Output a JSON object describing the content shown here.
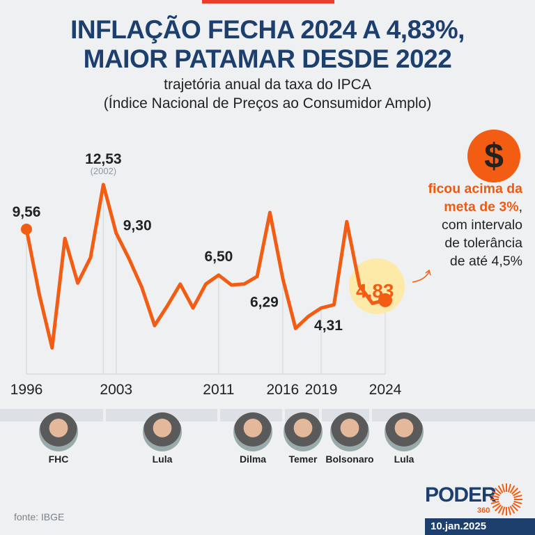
{
  "header": {
    "title_line1": "INFLAÇÃO FECHA 2024 A 4,83%,",
    "title_line2": "MAIOR PATAMAR DESDE 2022",
    "subtitle_line1": "trajetória anual da taxa do IPCA",
    "subtitle_line2": "(Índice Nacional de Preços ao Consumidor Amplo)"
  },
  "chart_data": {
    "type": "line",
    "x": [
      1996,
      1997,
      1998,
      1999,
      2000,
      2001,
      2002,
      2003,
      2004,
      2005,
      2006,
      2007,
      2008,
      2009,
      2010,
      2011,
      2012,
      2013,
      2014,
      2015,
      2016,
      2017,
      2018,
      2019,
      2020,
      2021,
      2022,
      2023,
      2024
    ],
    "values": [
      9.56,
      5.22,
      1.65,
      8.94,
      5.97,
      7.67,
      12.53,
      9.3,
      7.6,
      5.69,
      3.14,
      4.46,
      5.9,
      4.31,
      5.91,
      6.5,
      5.84,
      5.91,
      6.41,
      10.67,
      6.29,
      2.95,
      3.75,
      4.31,
      4.52,
      10.06,
      5.79,
      4.62,
      4.83
    ],
    "xticks": [
      "1996",
      "2003",
      "2011",
      "2016",
      "2019",
      "2024"
    ],
    "ylim": [
      0,
      13
    ],
    "line_color": "#f25c13",
    "annotations": [
      {
        "year": 1996,
        "label": "9,56"
      },
      {
        "year": 2002,
        "label": "12,53",
        "sublabel": "(2002)"
      },
      {
        "year": 2003,
        "label": "9,30"
      },
      {
        "year": 2011,
        "label": "6,50"
      },
      {
        "year": 2016,
        "label": "6,29"
      },
      {
        "year": 2019,
        "label": "4,31"
      },
      {
        "year": 2024,
        "label": "4,83",
        "highlight": true
      }
    ]
  },
  "callout": {
    "icon": "dollar-icon",
    "hl1": "ficou acima da",
    "hl2": "meta de 3%",
    "comma": ",",
    "line3": "com intervalo",
    "line4": "de tolerância",
    "line5": "de até 4,5%"
  },
  "presidents": [
    {
      "name": "FHC"
    },
    {
      "name": "Lula"
    },
    {
      "name": "Dilma"
    },
    {
      "name": "Temer"
    },
    {
      "name": "Bolsonaro"
    },
    {
      "name": "Lula"
    }
  ],
  "footer": {
    "source": "fonte: IBGE",
    "brand": "PODER",
    "brand_sub": "360",
    "date": "10.jan.2025"
  },
  "colors": {
    "accent": "#f25c13",
    "title": "#1c3f6e",
    "highlight_bg": "#fde9a8"
  }
}
